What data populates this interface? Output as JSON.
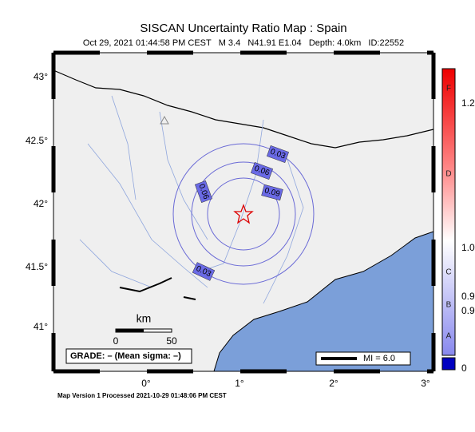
{
  "header": {
    "title": "SISCAN Uncertainty Ratio Map : Spain",
    "subtitle": "Oct 29, 2021 01:44:58 PM CEST   M 3.4   N41.91 E1.04   Depth: 4.0km   ID:22552"
  },
  "map": {
    "lat_labels": [
      "43°",
      "42.5°",
      "42°",
      "41.5°",
      "41°"
    ],
    "lon_labels": [
      "0°",
      "1°",
      "2°",
      "3°"
    ],
    "contour_labels": [
      "0.03",
      "0.06",
      "0.06",
      "0.09",
      "0.03"
    ]
  },
  "scale": {
    "unit": "km",
    "ticks": [
      "0",
      "50"
    ]
  },
  "grade": "GRADE: – (Mean sigma: –)",
  "legend": {
    "mi": "MI = 6.0"
  },
  "colorbar": {
    "letters": [
      "F",
      "D",
      "C",
      "B",
      "A"
    ],
    "values": [
      "1.2",
      "1.0",
      "0.9",
      "0.9",
      "0"
    ]
  },
  "footer": "Map Version 1 Processed 2021-10-29 01:48:06 PM CEST"
}
